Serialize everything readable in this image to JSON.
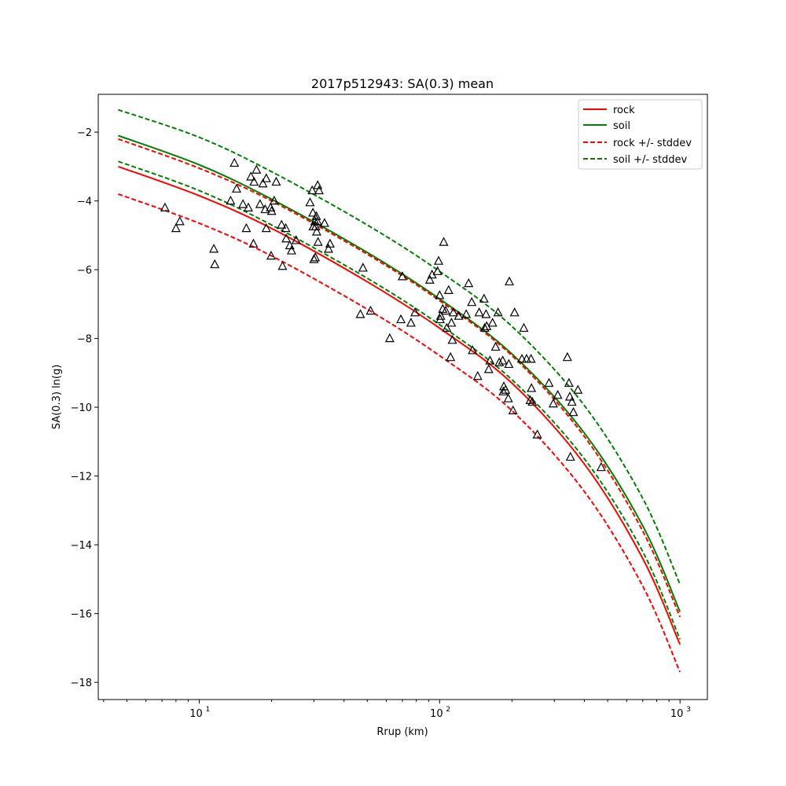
{
  "chart_data": {
    "type": "line",
    "title": "2017p512943: SA(0.3) mean",
    "xlabel": "Rrup (km)",
    "ylabel": "SA(0.3) ln(g)",
    "xscale": "log",
    "xlim": [
      3.8,
      1300
    ],
    "ylim": [
      -18.5,
      -0.9
    ],
    "x_ticks": [
      {
        "base": "10",
        "exp": "1",
        "value": 10
      },
      {
        "base": "10",
        "exp": "2",
        "value": 100
      },
      {
        "base": "10",
        "exp": "3",
        "value": 1000
      }
    ],
    "y_ticks": [
      {
        "label": "−2",
        "value": -2
      },
      {
        "label": "−4",
        "value": -4
      },
      {
        "label": "−6",
        "value": -6
      },
      {
        "label": "−8",
        "value": -8
      },
      {
        "label": "−10",
        "value": -10
      },
      {
        "label": "−12",
        "value": -12
      },
      {
        "label": "−14",
        "value": -14
      },
      {
        "label": "−16",
        "value": -16
      },
      {
        "label": "−18",
        "value": -18
      }
    ],
    "grid": false,
    "legend_position": "top-right",
    "curve_x": [
      4.6,
      10,
      20,
      50,
      100,
      200,
      400,
      700,
      1000
    ],
    "series": [
      {
        "name": "rock",
        "color": "#ff0000",
        "dash": "solid",
        "y": [
          -3.0,
          -3.85,
          -4.8,
          -6.35,
          -7.7,
          -9.3,
          -11.65,
          -14.4,
          -16.9
        ]
      },
      {
        "name": "soil",
        "color": "#008000",
        "dash": "solid",
        "y": [
          -2.1,
          -2.95,
          -3.95,
          -5.5,
          -6.85,
          -8.45,
          -10.75,
          -13.45,
          -15.95
        ]
      },
      {
        "name": "rock +/- stddev",
        "color": "#ff0000",
        "dash": "dashed",
        "y": [
          -2.2,
          -3.05,
          -4.0,
          -5.55,
          -6.9,
          -8.5,
          -10.85,
          -13.6,
          -16.1
        ],
        "y_lower": [
          -3.8,
          -4.65,
          -5.6,
          -7.15,
          -8.5,
          -10.1,
          -12.45,
          -15.2,
          -17.7
        ]
      },
      {
        "name": "soil +/- stddev",
        "color": "#008000",
        "dash": "dashed",
        "y": [
          -1.35,
          -2.15,
          -3.15,
          -4.7,
          -6.05,
          -7.65,
          -9.95,
          -12.65,
          -15.15
        ],
        "y_lower": [
          -2.85,
          -3.7,
          -4.7,
          -6.25,
          -7.6,
          -9.2,
          -11.5,
          -14.2,
          -16.75
        ]
      }
    ],
    "observations": {
      "marker": "triangle",
      "color": "#000000",
      "points": [
        [
          7.2,
          -4.2
        ],
        [
          8.0,
          -4.8
        ],
        [
          8.3,
          -4.6
        ],
        [
          11.5,
          -5.4
        ],
        [
          11.6,
          -5.85
        ],
        [
          13.5,
          -4.0
        ],
        [
          14.0,
          -2.9
        ],
        [
          14.3,
          -3.65
        ],
        [
          15.2,
          -4.1
        ],
        [
          15.7,
          -4.8
        ],
        [
          16.0,
          -4.2
        ],
        [
          16.4,
          -3.3
        ],
        [
          16.8,
          -5.25
        ],
        [
          16.9,
          -3.45
        ],
        [
          17.3,
          -3.1
        ],
        [
          17.9,
          -4.1
        ],
        [
          18.4,
          -3.5
        ],
        [
          18.8,
          -4.25
        ],
        [
          19.0,
          -3.35
        ],
        [
          19.0,
          -4.8
        ],
        [
          19.8,
          -4.2
        ],
        [
          19.9,
          -5.6
        ],
        [
          20.0,
          -4.3
        ],
        [
          20.5,
          -4.0
        ],
        [
          20.9,
          -3.45
        ],
        [
          22.0,
          -4.7
        ],
        [
          22.2,
          -5.9
        ],
        [
          22.9,
          -4.8
        ],
        [
          23.0,
          -5.1
        ],
        [
          23.8,
          -5.3
        ],
        [
          24.2,
          -5.45
        ],
        [
          25.3,
          -5.15
        ],
        [
          28.9,
          -4.05
        ],
        [
          29.5,
          -3.7
        ],
        [
          29.7,
          -4.35
        ],
        [
          29.8,
          -4.75
        ],
        [
          30.0,
          -5.7
        ],
        [
          30.3,
          -4.6
        ],
        [
          30.4,
          -5.65
        ],
        [
          30.5,
          -4.75
        ],
        [
          30.7,
          -4.45
        ],
        [
          30.8,
          -4.9
        ],
        [
          31.0,
          -4.6
        ],
        [
          31.1,
          -3.55
        ],
        [
          31.2,
          -5.2
        ],
        [
          31.5,
          -3.7
        ],
        [
          33.2,
          -4.65
        ],
        [
          34.5,
          -5.4
        ],
        [
          35.0,
          -5.25
        ],
        [
          46.8,
          -7.3
        ],
        [
          48.0,
          -5.95
        ],
        [
          51.6,
          -7.2
        ],
        [
          62.0,
          -8.0
        ],
        [
          69.0,
          -7.45
        ],
        [
          70.0,
          -6.2
        ],
        [
          76.0,
          -7.55
        ],
        [
          79.0,
          -7.25
        ],
        [
          91.0,
          -6.3
        ],
        [
          93.0,
          -6.15
        ],
        [
          98.0,
          -6.05
        ],
        [
          99.0,
          -5.75
        ],
        [
          100.0,
          -6.75
        ],
        [
          100.5,
          -7.45
        ],
        [
          101.0,
          -7.35
        ],
        [
          103.0,
          -7.15
        ],
        [
          104.0,
          -5.2
        ],
        [
          106.0,
          -7.2
        ],
        [
          107.0,
          -7.7
        ],
        [
          109.0,
          -6.6
        ],
        [
          111.0,
          -8.55
        ],
        [
          112.0,
          -7.55
        ],
        [
          113.0,
          -8.05
        ],
        [
          114.0,
          -7.25
        ],
        [
          120.0,
          -7.35
        ],
        [
          129.0,
          -7.3
        ],
        [
          132.0,
          -6.4
        ],
        [
          136.0,
          -6.95
        ],
        [
          137.0,
          -8.35
        ],
        [
          144.0,
          -9.1
        ],
        [
          146.0,
          -7.25
        ],
        [
          153.0,
          -6.85
        ],
        [
          154.0,
          -7.7
        ],
        [
          156.0,
          -7.3
        ],
        [
          157.0,
          -7.65
        ],
        [
          160.0,
          -8.9
        ],
        [
          162.0,
          -8.65
        ],
        [
          166.0,
          -7.55
        ],
        [
          171.0,
          -8.25
        ],
        [
          175.0,
          -7.25
        ],
        [
          177.0,
          -8.7
        ],
        [
          183.0,
          -8.65
        ],
        [
          184.0,
          -9.55
        ],
        [
          185.0,
          -9.4
        ],
        [
          188.0,
          -9.5
        ],
        [
          193.0,
          -9.75
        ],
        [
          194.0,
          -8.75
        ],
        [
          195.0,
          -6.35
        ],
        [
          202.0,
          -10.1
        ],
        [
          205.0,
          -7.25
        ],
        [
          220.0,
          -8.6
        ],
        [
          224.0,
          -7.7
        ],
        [
          230.0,
          -8.6
        ],
        [
          238.0,
          -9.8
        ],
        [
          240.0,
          -8.6
        ],
        [
          241.0,
          -9.45
        ],
        [
          243.0,
          -9.85
        ],
        [
          255.0,
          -10.8
        ],
        [
          285.0,
          -9.3
        ],
        [
          297.0,
          -9.9
        ],
        [
          310.0,
          -9.65
        ],
        [
          340.0,
          -8.55
        ],
        [
          345.0,
          -9.3
        ],
        [
          348.0,
          -9.7
        ],
        [
          350.0,
          -11.45
        ],
        [
          355.0,
          -9.85
        ],
        [
          360.0,
          -10.15
        ],
        [
          376.0,
          -9.5
        ],
        [
          470.0,
          -11.75
        ]
      ]
    }
  }
}
